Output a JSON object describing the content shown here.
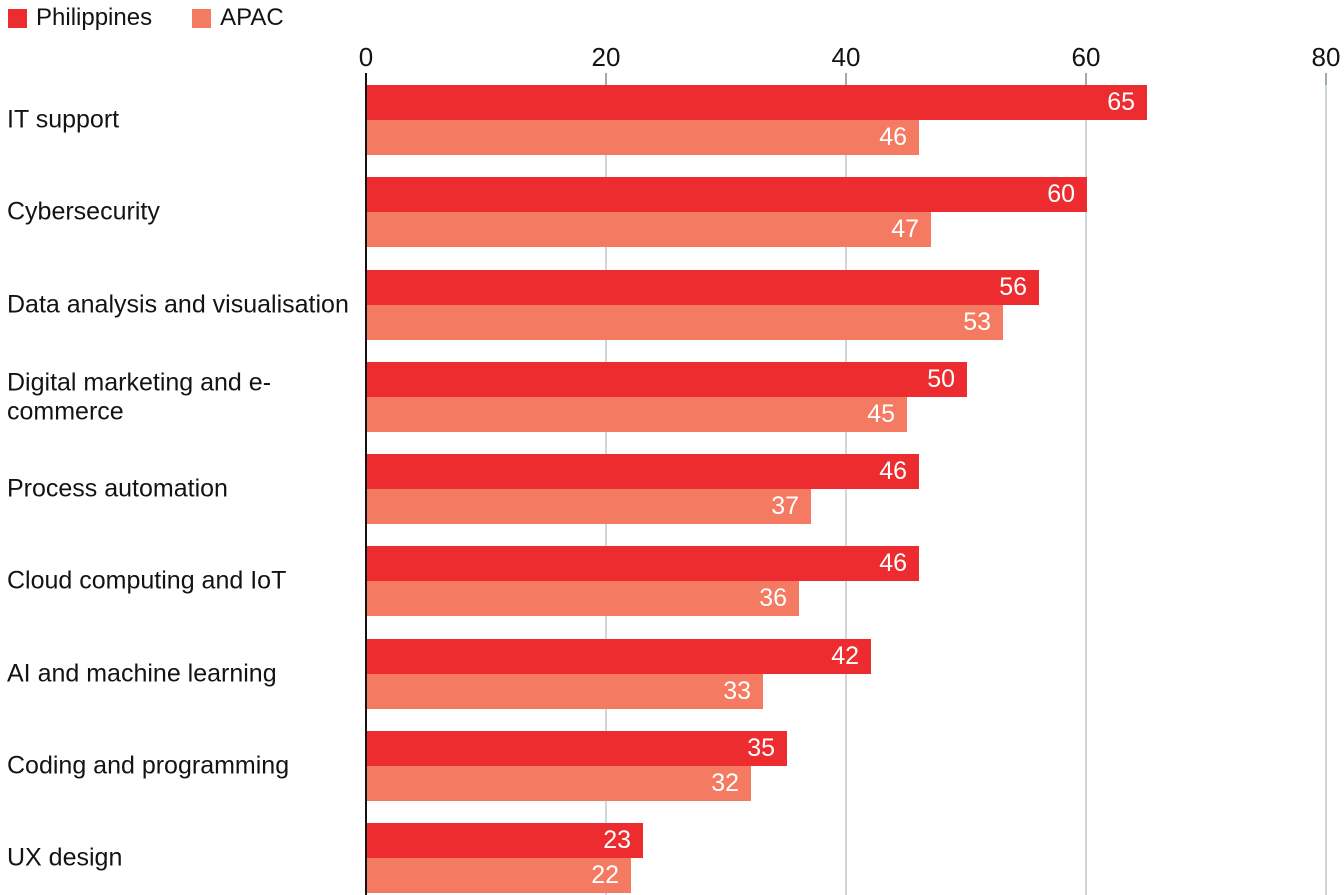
{
  "legend": {
    "items": [
      {
        "label": "Philippines",
        "color": "#ed2c30"
      },
      {
        "label": "APAC",
        "color": "#f47a62"
      }
    ]
  },
  "chart_data": {
    "type": "bar",
    "orientation": "horizontal",
    "categories": [
      "IT support",
      "Cybersecurity",
      "Data analysis and visualisation",
      "Digital marketing and e-commerce",
      "Process automation",
      "Cloud computing and IoT",
      "AI and machine learning",
      "Coding and programming",
      "UX design"
    ],
    "series": [
      {
        "name": "Philippines",
        "color": "#ed2c30",
        "values": [
          65,
          60,
          56,
          50,
          46,
          46,
          42,
          35,
          23
        ]
      },
      {
        "name": "APAC",
        "color": "#f47a62",
        "values": [
          46,
          47,
          53,
          45,
          37,
          36,
          33,
          32,
          22
        ]
      }
    ],
    "xlim": [
      0,
      80
    ],
    "xticks": [
      0,
      20,
      40,
      60,
      80
    ],
    "grid": "vertical",
    "legend_position": "top-left",
    "value_labels": "inside-end",
    "title": "",
    "xlabel": "",
    "ylabel": ""
  },
  "colors": {
    "background": "#ffffff",
    "axis": "#131313",
    "tick": "#9fa9b0",
    "gridline": "#cdd6db",
    "text": "#131313",
    "value_text": "#ffffff"
  }
}
